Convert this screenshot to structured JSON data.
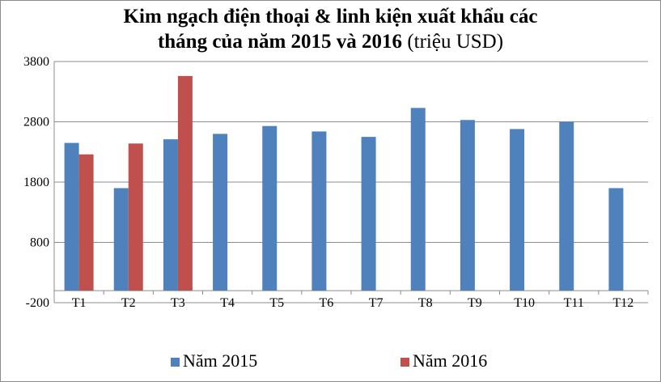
{
  "chart_data": {
    "type": "bar",
    "title_line1": "Kim ngạch điện thoại & linh kiện xuất khẩu các",
    "title_line2": "tháng của năm 2015 và 2016",
    "title_unit": "(triệu USD)",
    "categories": [
      "T1",
      "T2",
      "T3",
      "T4",
      "T5",
      "T6",
      "T7",
      "T8",
      "T9",
      "T10",
      "T11",
      "T12"
    ],
    "series": [
      {
        "name": "Năm 2015",
        "color": "#4F81BD",
        "values": [
          2450,
          1700,
          2510,
          2600,
          2730,
          2640,
          2550,
          3030,
          2830,
          2680,
          2800,
          1700
        ]
      },
      {
        "name": "Năm 2016",
        "color": "#C0504D",
        "values": [
          2260,
          2440,
          3560,
          null,
          null,
          null,
          null,
          null,
          null,
          null,
          null,
          null
        ]
      }
    ],
    "yticks": [
      3800,
      2800,
      1800,
      800,
      -200
    ],
    "ylim": [
      -200,
      3800
    ],
    "grid": true,
    "legend_position": "bottom"
  }
}
